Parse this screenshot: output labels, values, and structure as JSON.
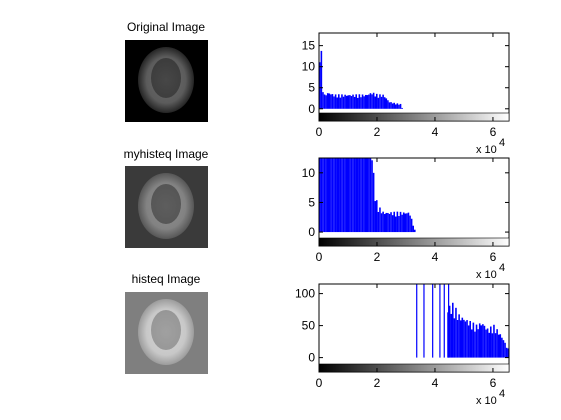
{
  "panels": [
    {
      "title": "Original Image",
      "image": {
        "brain_color": "#7a7a7a",
        "background": "#000000"
      }
    },
    {
      "title": "myhisteq Image",
      "image": {
        "brain_color": "#9a9a9a",
        "background": "#3a3a3a"
      }
    },
    {
      "title": "histeq Image",
      "image": {
        "brain_color": "#e0e0e0",
        "background": "#7f7f7f"
      }
    }
  ],
  "chart_data": [
    {
      "type": "bar",
      "xlim": [
        0,
        65535
      ],
      "ylim": [
        -1,
        18
      ],
      "x_ticks": [
        0,
        2,
        4,
        6
      ],
      "y_ticks": [
        0,
        5,
        10,
        15
      ],
      "x_multiplier": "x 10",
      "x_multiplier_exp": "4",
      "bar_color": "#0000ff",
      "colorbar": "gray",
      "profile": [
        [
          0,
          13
        ],
        [
          400,
          16
        ],
        [
          800,
          5
        ],
        [
          1600,
          3
        ],
        [
          3000,
          3.5
        ],
        [
          5000,
          3
        ],
        [
          8000,
          3
        ],
        [
          10000,
          3
        ],
        [
          12000,
          3
        ],
        [
          14000,
          3
        ],
        [
          16000,
          3
        ],
        [
          18000,
          3.5
        ],
        [
          20000,
          3
        ],
        [
          22000,
          3
        ],
        [
          24000,
          1.5
        ],
        [
          26000,
          1.2
        ],
        [
          28000,
          1
        ],
        [
          28500,
          0
        ]
      ]
    },
    {
      "type": "bar",
      "xlim": [
        0,
        65535
      ],
      "ylim": [
        -1,
        12.5
      ],
      "x_ticks": [
        0,
        2,
        4,
        6
      ],
      "y_ticks": [
        0,
        5,
        10
      ],
      "x_multiplier": "x 10",
      "x_multiplier_exp": "4",
      "bar_color": "#0000ff",
      "profile": [
        [
          0,
          12.5
        ],
        [
          1000,
          12.5
        ],
        [
          2000,
          12.5
        ],
        [
          3000,
          12.5
        ],
        [
          6000,
          12.5
        ],
        [
          10000,
          12.5
        ],
        [
          14000,
          12.5
        ],
        [
          18000,
          12.5
        ],
        [
          19000,
          6
        ],
        [
          20000,
          4
        ],
        [
          22000,
          3
        ],
        [
          25000,
          3
        ],
        [
          28000,
          3
        ],
        [
          31000,
          3
        ],
        [
          33000,
          0
        ]
      ]
    },
    {
      "type": "bar",
      "xlim": [
        0,
        65535
      ],
      "ylim": [
        -10,
        115
      ],
      "x_ticks": [
        0,
        2,
        4,
        6
      ],
      "y_ticks": [
        0,
        50,
        100
      ],
      "x_multiplier": "x 10",
      "x_multiplier_exp": "4",
      "bar_color": "#0000ff",
      "spikes": [
        33500,
        36000,
        39000,
        41500,
        43000,
        44500
      ],
      "profile": [
        [
          44000,
          70
        ],
        [
          46000,
          75
        ],
        [
          48000,
          60
        ],
        [
          50000,
          55
        ],
        [
          52000,
          50
        ],
        [
          54000,
          45
        ],
        [
          56000,
          50
        ],
        [
          58000,
          40
        ],
        [
          60000,
          45
        ],
        [
          62000,
          35
        ],
        [
          63500,
          25
        ],
        [
          64500,
          15
        ],
        [
          65535,
          10
        ]
      ]
    }
  ]
}
